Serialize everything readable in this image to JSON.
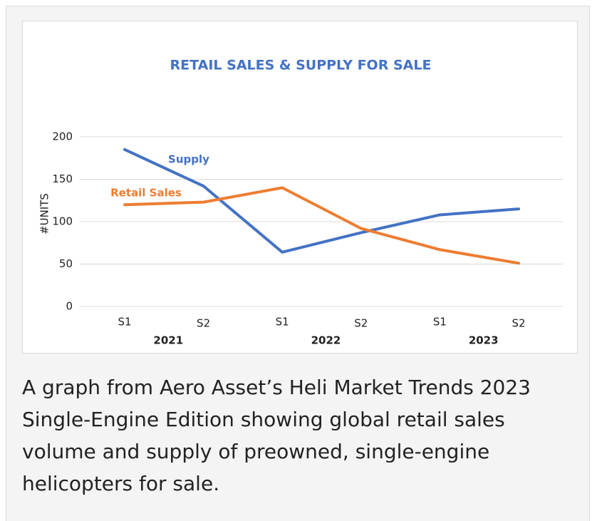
{
  "chart_data": {
    "type": "line",
    "title": "RETAIL SALES & SUPPLY FOR SALE",
    "y_label": "#UNITS",
    "categories": [
      "S1",
      "S2",
      "S1",
      "S2",
      "S1",
      "S2"
    ],
    "groups": [
      "2021",
      "2022",
      "2023"
    ],
    "series": [
      {
        "name": "Supply",
        "color": "#4472c4",
        "values": [
          185,
          142,
          64,
          87,
          108,
          115
        ]
      },
      {
        "name": "Retail Sales",
        "color": "#ed7d31",
        "values": [
          120,
          123,
          140,
          92,
          67,
          51
        ]
      }
    ],
    "ylim": [
      0,
      200
    ],
    "yticks": [
      0,
      50,
      100,
      150,
      200
    ],
    "grid": true
  },
  "caption": {
    "lines": [
      "A graph from Aero Asset’s Heli Market Trends 2023",
      "Single-Engine Edition showing global retail sales",
      "volume and supply of preowned, single-engine",
      "helicopters for sale."
    ]
  }
}
